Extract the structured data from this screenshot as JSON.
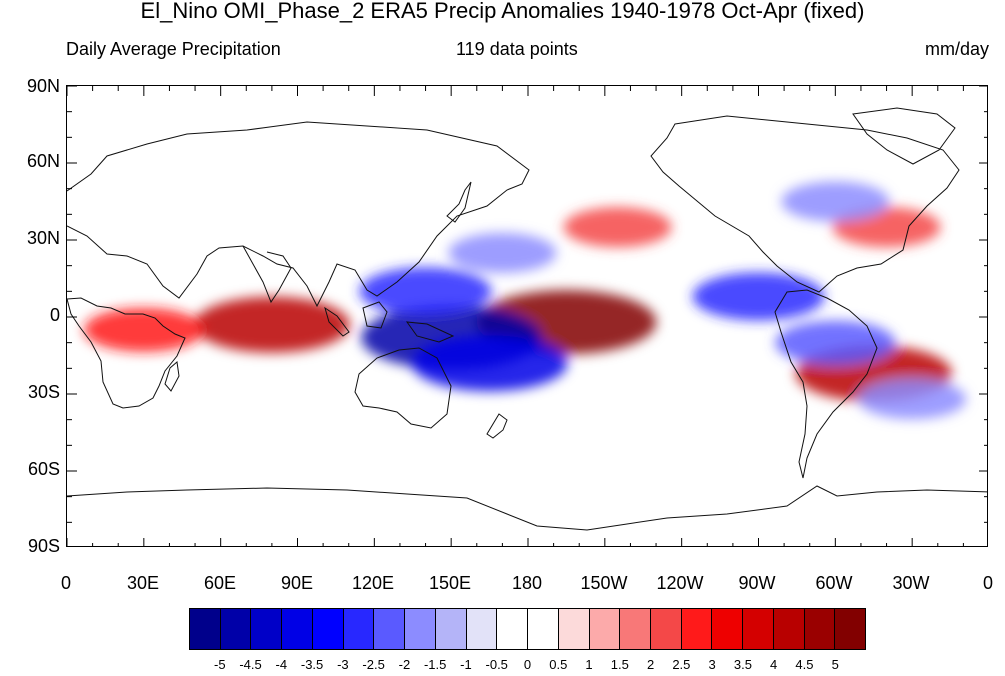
{
  "title": "El_Nino OMI_Phase_2 ERA5 Precip Anomalies 1940-1978 Oct-Apr (fixed)",
  "subtitle_left": "Daily Average Precipitation",
  "subtitle_center": "119 data points",
  "subtitle_right": "mm/day",
  "lat_labels": [
    "90N",
    "60N",
    "30N",
    "0",
    "30S",
    "60S",
    "90S"
  ],
  "lon_labels": [
    "0",
    "30E",
    "60E",
    "90E",
    "120E",
    "150E",
    "180",
    "150W",
    "120W",
    "90W",
    "60W",
    "30W",
    "0"
  ],
  "colorbar": {
    "labels": [
      "-5",
      "-4.5",
      "-4",
      "-3.5",
      "-3",
      "-2.5",
      "-2",
      "-1.5",
      "-1",
      "-0.5",
      "0",
      "0.5",
      "1",
      "1.5",
      "2",
      "2.5",
      "3",
      "3.5",
      "4",
      "4.5",
      "5"
    ],
    "colors": [
      "#00008b",
      "#0000a8",
      "#0000c8",
      "#0000e6",
      "#0000ff",
      "#2828ff",
      "#5a5aff",
      "#8c8cff",
      "#b4b4f8",
      "#e2e2f8",
      "#ffffff",
      "#ffffff",
      "#fcdada",
      "#fcaaaa",
      "#f87878",
      "#f44848",
      "#ff1a1a",
      "#ee0000",
      "#d40000",
      "#b80000",
      "#9a0000",
      "#820000"
    ]
  },
  "map": {
    "projection": "cylindrical-equidistant",
    "central_longitude": 180,
    "anomaly_regions": [
      {
        "name": "indian-ocean-wet",
        "lon": 80,
        "lat": -3,
        "value": 4
      },
      {
        "name": "central-pacific-wet",
        "lon": 195,
        "lat": -2,
        "value": 5
      },
      {
        "name": "maritime-continent-dry",
        "lon": 150,
        "lat": -8,
        "value": -5
      },
      {
        "name": "south-pacific-dry",
        "lon": 165,
        "lat": -18,
        "value": -4
      },
      {
        "name": "north-pacific-dry",
        "lon": 170,
        "lat": 25,
        "value": -2
      },
      {
        "name": "west-pacific-dry",
        "lon": 140,
        "lat": 10,
        "value": -3
      },
      {
        "name": "east-pacific-dry",
        "lon": 270,
        "lat": 8,
        "value": -3
      },
      {
        "name": "brazil-wet",
        "lon": 315,
        "lat": -22,
        "value": 4
      },
      {
        "name": "amazon-dry",
        "lon": 300,
        "lat": -10,
        "value": -2.5
      },
      {
        "name": "south-atlantic-dry",
        "lon": 330,
        "lat": -32,
        "value": -2
      },
      {
        "name": "north-atlantic-wet",
        "lon": 320,
        "lat": 35,
        "value": 2
      },
      {
        "name": "north-atlantic-dry",
        "lon": 300,
        "lat": 45,
        "value": -2
      },
      {
        "name": "africa-wet",
        "lon": 30,
        "lat": -5,
        "value": 2.5
      },
      {
        "name": "northeast-pacific-wet",
        "lon": 215,
        "lat": 35,
        "value": 2
      }
    ]
  }
}
